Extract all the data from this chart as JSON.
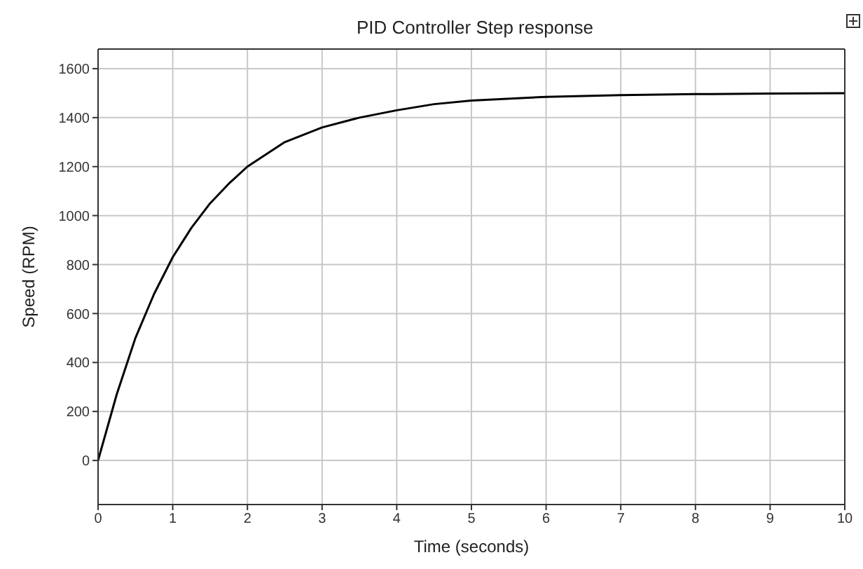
{
  "chart_data": {
    "type": "line",
    "title": "PID Controller Step response",
    "xlabel": "Time (seconds)",
    "ylabel": "Speed (RPM)",
    "x": [
      0,
      0.25,
      0.5,
      0.75,
      1,
      1.25,
      1.5,
      1.75,
      2,
      2.5,
      3,
      3.5,
      4,
      4.5,
      5,
      6,
      7,
      8,
      9,
      10
    ],
    "series": [
      {
        "color": "#000000",
        "values": [
          0,
          270,
          500,
          680,
          830,
          950,
          1050,
          1130,
          1200,
          1300,
          1360,
          1400,
          1430,
          1455,
          1470,
          1485,
          1492,
          1496,
          1498,
          1500
        ]
      }
    ],
    "xlim": [
      0,
      10
    ],
    "xticks": [
      0,
      1,
      2,
      3,
      4,
      5,
      6,
      7,
      8,
      9,
      10
    ],
    "ylim": [
      -180,
      1680
    ],
    "yticks": [
      0,
      200,
      400,
      600,
      800,
      1000,
      1200,
      1400,
      1600
    ],
    "grid": true,
    "marker": "none",
    "line_style": "solid"
  }
}
